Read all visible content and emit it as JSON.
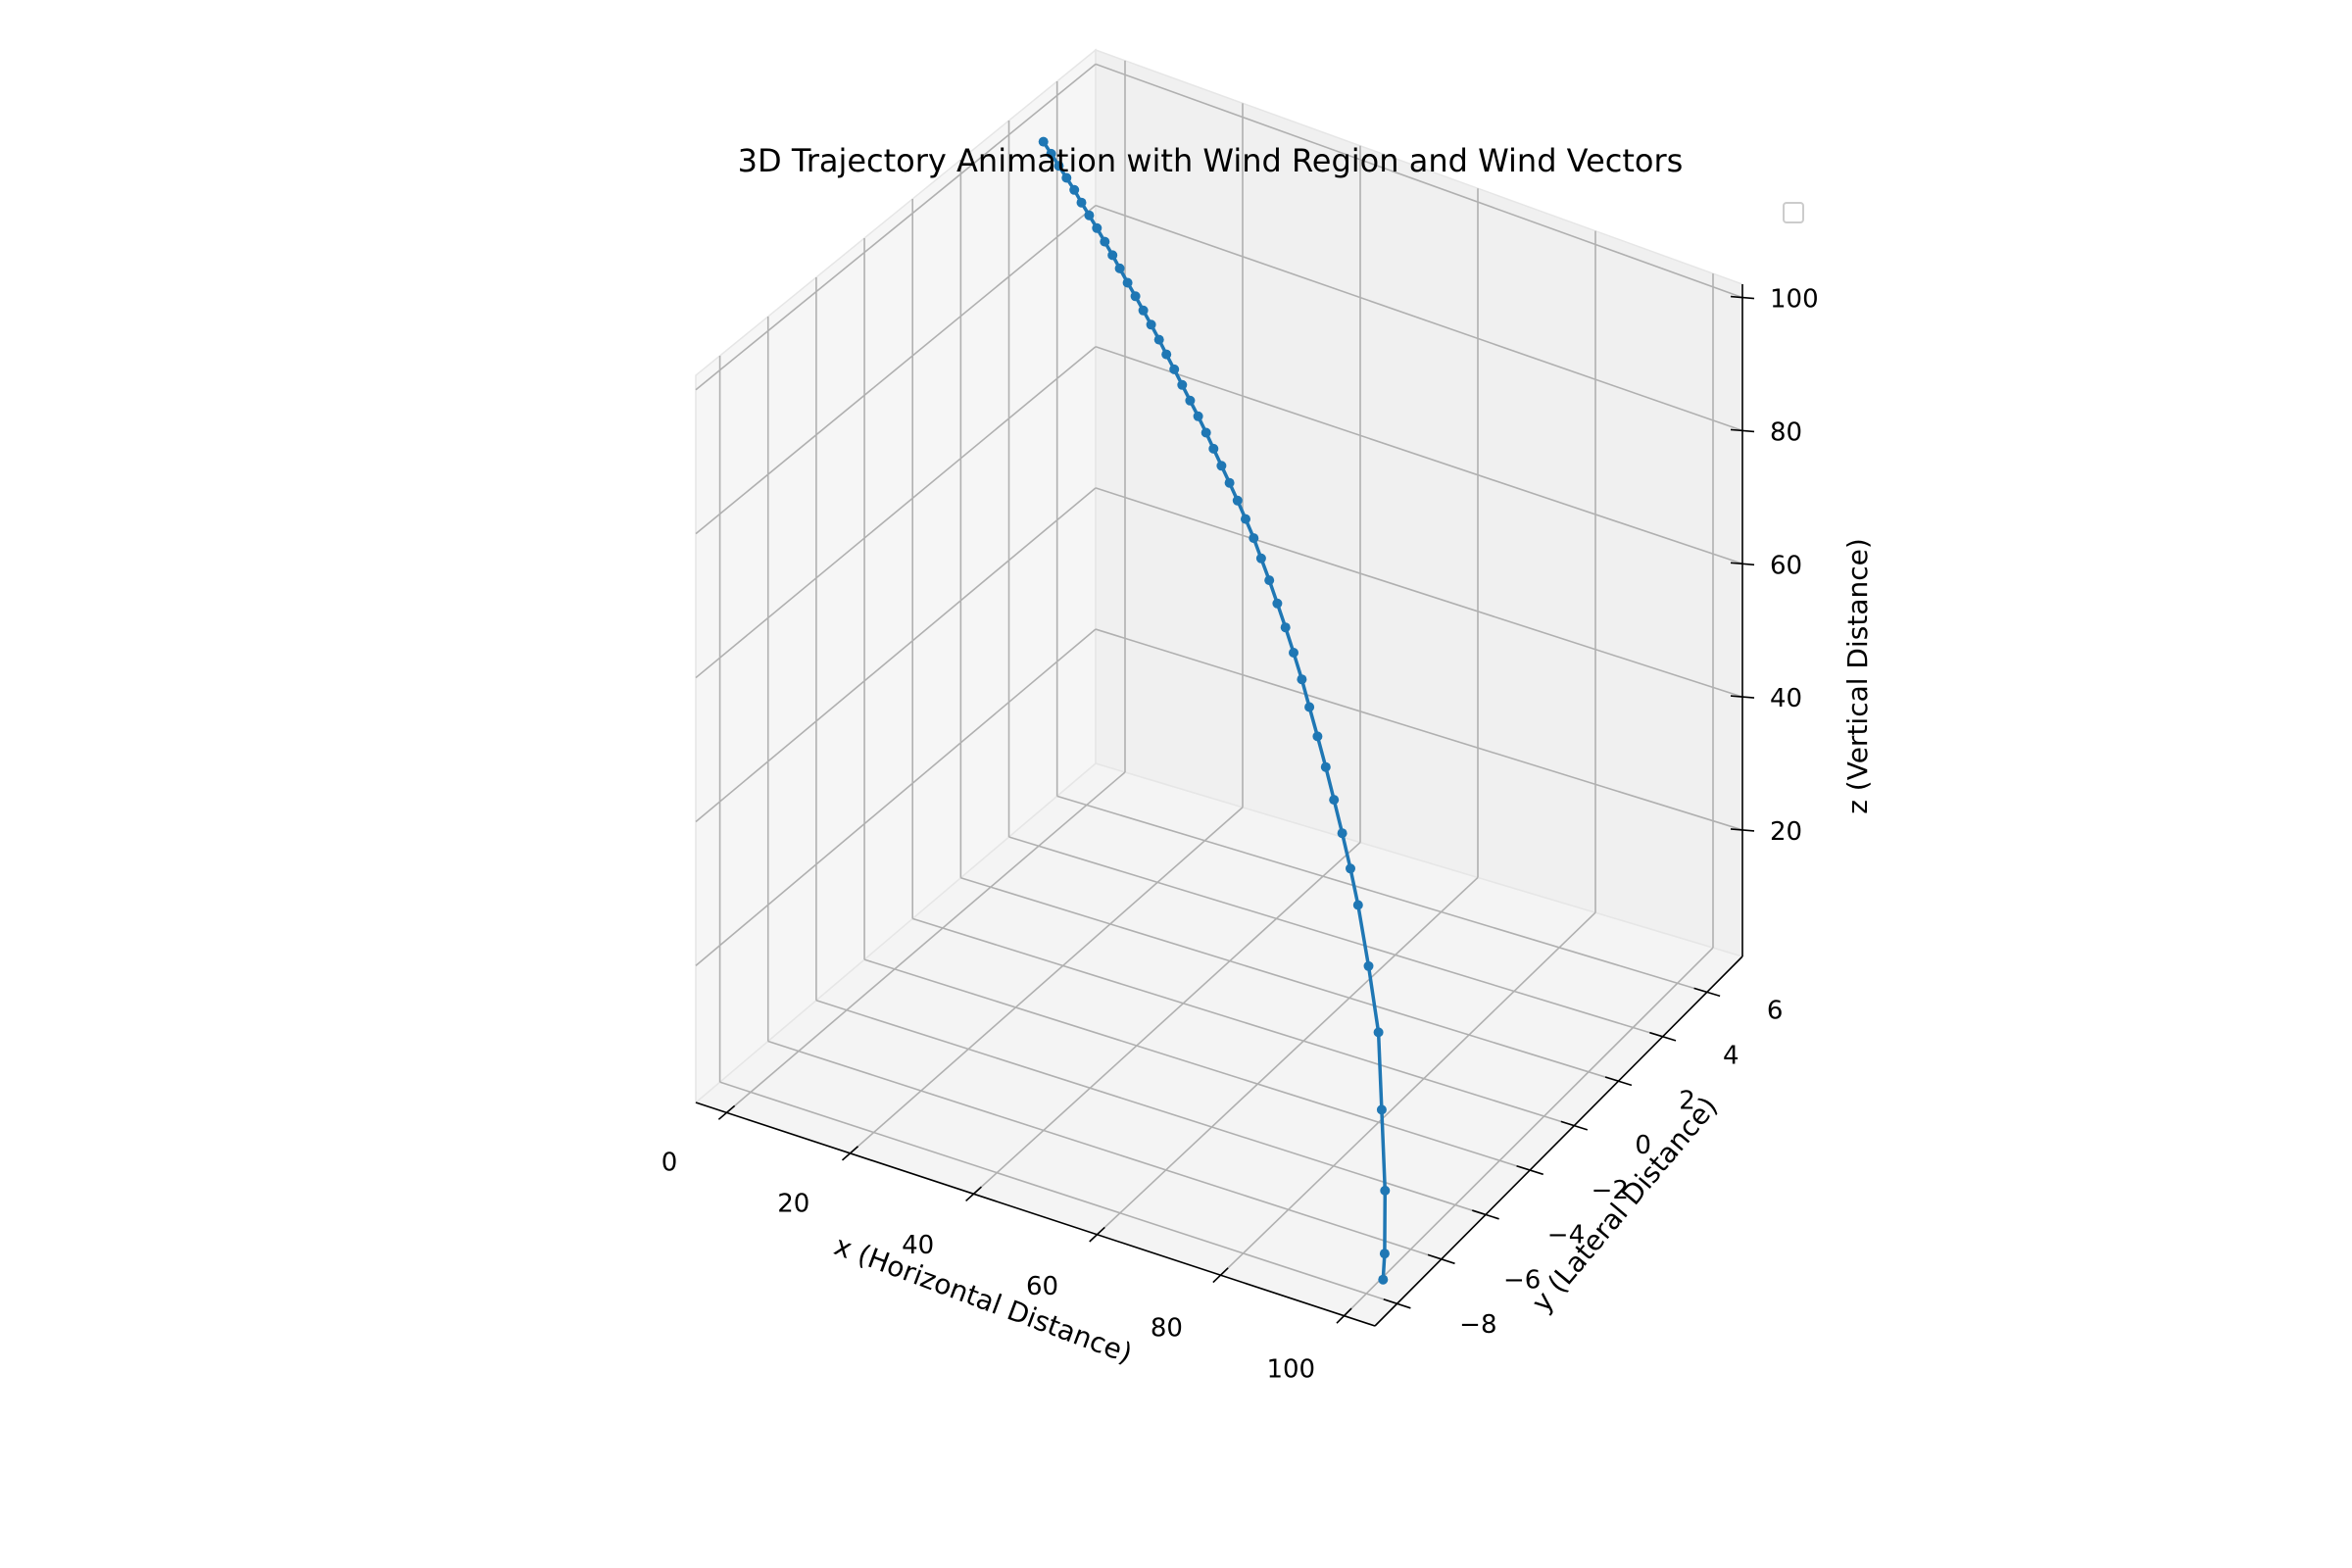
{
  "chart_data": {
    "type": "line",
    "title": "3D Trajectory Animation with Wind Region and Wind Vectors",
    "xlabel": "x (Horizontal Distance)",
    "ylabel": "y (Lateral Distance)",
    "zlabel": "z (Vertical Distance)",
    "xlim": [
      -5,
      105
    ],
    "ylim": [
      -9,
      7.6
    ],
    "zlim": [
      1,
      102
    ],
    "xticks": [
      "0",
      "20",
      "40",
      "60",
      "80",
      "100"
    ],
    "yticks": [
      "−8",
      "−6",
      "−4",
      "−2",
      "0",
      "2",
      "4",
      "6"
    ],
    "zticks": [
      "20",
      "40",
      "60",
      "80",
      "100"
    ],
    "grid": true,
    "legend": "top-right, empty",
    "series_color": "#1f77b4",
    "series": [
      {
        "x": [
          0.0,
          2.1,
          4.2,
          6.3,
          8.4,
          10.4,
          12.5,
          14.6,
          16.7,
          18.8,
          20.8,
          22.9,
          25.0,
          27.1,
          29.2,
          31.3,
          33.3,
          35.4,
          37.5,
          39.6,
          41.7,
          43.8,
          45.8,
          47.9,
          50.0,
          52.1,
          54.2,
          56.3,
          58.3,
          60.4,
          62.5,
          64.6,
          66.7,
          68.8,
          70.8,
          72.9,
          75.0,
          77.1,
          79.2,
          81.3,
          83.3,
          86.5,
          89.6,
          92.7,
          95.8,
          99.0,
          102.0
        ],
        "y": [
          4.2,
          4.0,
          3.8,
          3.6,
          3.4,
          3.2,
          3.0,
          2.8,
          2.6,
          2.4,
          2.2,
          2.0,
          1.8,
          1.6,
          1.4,
          1.2,
          1.0,
          0.8,
          0.6,
          0.4,
          0.2,
          0.0,
          -0.2,
          -0.4,
          -0.6,
          -0.8,
          -1.0,
          -1.2,
          -1.4,
          -1.6,
          -1.8,
          -2.0,
          -2.2,
          -2.4,
          -2.6,
          -2.8,
          -3.0,
          -3.2,
          -3.4,
          -3.6,
          -3.8,
          -4.2,
          -4.6,
          -5.3,
          -6.0,
          -6.9,
          -7.8
        ],
        "z": [
          100.0,
          99.5,
          99.0,
          98.5,
          98.0,
          97.4,
          96.8,
          96.2,
          95.5,
          94.8,
          94.1,
          93.3,
          92.6,
          91.8,
          91.0,
          90.1,
          89.2,
          88.3,
          87.3,
          86.3,
          85.3,
          84.2,
          83.1,
          81.9,
          80.7,
          79.4,
          78.0,
          76.5,
          74.8,
          72.9,
          70.8,
          68.6,
          66.2,
          63.6,
          60.8,
          57.8,
          54.6,
          51.1,
          47.5,
          43.6,
          39.5,
          32.8,
          25.3,
          17.1,
          8.4,
          3.0,
          3.0
        ]
      }
    ]
  }
}
